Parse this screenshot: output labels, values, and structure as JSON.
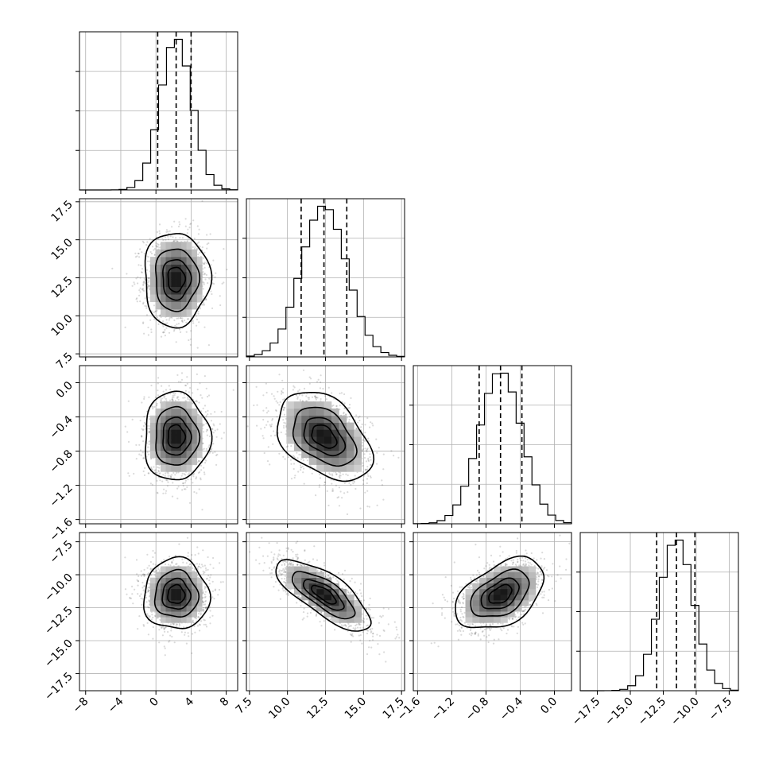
{
  "chart_data": {
    "type": "corner",
    "title": "",
    "grid": true,
    "parameters": [
      {
        "name": "",
        "mean": 2.3,
        "sd": 1.8,
        "range": [
          -8.7,
          9.3
        ],
        "ticks": [
          -8,
          -4,
          0,
          4,
          8
        ],
        "tick_labels": [
          "−8",
          "−4",
          "0",
          "4",
          "8"
        ],
        "quantiles": [
          0.2,
          2.3,
          4.0
        ]
      },
      {
        "name": "",
        "mean": 12.4,
        "sd": 1.5,
        "range": [
          7.3,
          17.7
        ],
        "ticks": [
          7.5,
          10.0,
          12.5,
          15.0,
          17.5
        ],
        "tick_labels": [
          "7.5",
          "10.0",
          "12.5",
          "15.0",
          "17.5"
        ],
        "quantiles": [
          10.9,
          12.4,
          13.9
        ]
      },
      {
        "name": "",
        "mean": -0.63,
        "sd": 0.25,
        "range": [
          -1.65,
          0.2
        ],
        "ticks": [
          -1.6,
          -1.2,
          -0.8,
          -0.4,
          0.0
        ],
        "tick_labels": [
          "−1.6",
          "−1.2",
          "−0.8",
          "−0.4",
          "0.0"
        ],
        "quantiles": [
          -0.88,
          -0.63,
          -0.38
        ]
      },
      {
        "name": "",
        "mean": -11.5,
        "sd": 1.3,
        "range": [
          -18.8,
          -6.8
        ],
        "ticks": [
          -17.5,
          -15.0,
          -12.5,
          -10.0,
          -7.5
        ],
        "tick_labels": [
          "−17.5",
          "−15.0",
          "−12.5",
          "−10.0",
          "−7.5"
        ],
        "quantiles": [
          -13.0,
          -11.5,
          -10.1
        ]
      }
    ],
    "correlations": [
      [
        1.0,
        0.0,
        0.0,
        0.0
      ],
      [
        0.0,
        1.0,
        -0.4,
        -0.75
      ],
      [
        0.0,
        -0.4,
        1.0,
        0.45
      ],
      [
        0.0,
        -0.75,
        0.45,
        1.0
      ]
    ],
    "histogram_bins": 20,
    "samples_per_panel": 1500
  }
}
